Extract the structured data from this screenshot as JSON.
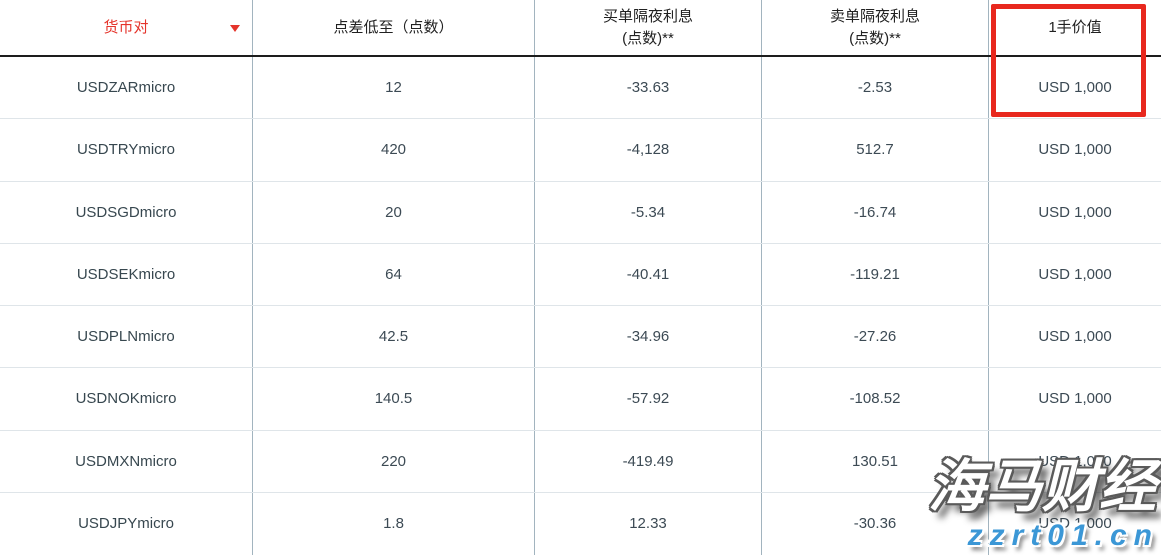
{
  "table": {
    "columns": [
      {
        "key": "pair",
        "label": "货币对",
        "has_sort_dropdown": true,
        "label_color": "#e5342b"
      },
      {
        "key": "spread",
        "label": "点差低至（点数）"
      },
      {
        "key": "buy_swap",
        "label_line1": "买单隔夜利息",
        "label_line2": "(点数)**"
      },
      {
        "key": "sell_swap",
        "label_line1": "卖单隔夜利息",
        "label_line2": "(点数)**"
      },
      {
        "key": "lot_value",
        "label": "1手价值",
        "highlighted": true
      }
    ],
    "rows": [
      {
        "pair": "USDZARmicro",
        "spread": "12",
        "buy_swap": "-33.63",
        "sell_swap": "-2.53",
        "lot_value": "USD 1,000"
      },
      {
        "pair": "USDTRYmicro",
        "spread": "420",
        "buy_swap": "-4,128",
        "sell_swap": "512.7",
        "lot_value": "USD 1,000"
      },
      {
        "pair": "USDSGDmicro",
        "spread": "20",
        "buy_swap": "-5.34",
        "sell_swap": "-16.74",
        "lot_value": "USD 1,000"
      },
      {
        "pair": "USDSEKmicro",
        "spread": "64",
        "buy_swap": "-40.41",
        "sell_swap": "-119.21",
        "lot_value": "USD 1,000"
      },
      {
        "pair": "USDPLNmicro",
        "spread": "42.5",
        "buy_swap": "-34.96",
        "sell_swap": "-27.26",
        "lot_value": "USD 1,000"
      },
      {
        "pair": "USDNOKmicro",
        "spread": "140.5",
        "buy_swap": "-57.92",
        "sell_swap": "-108.52",
        "lot_value": "USD 1,000"
      },
      {
        "pair": "USDMXNmicro",
        "spread": "220",
        "buy_swap": "-419.49",
        "sell_swap": "130.51",
        "lot_value": "USD 1,000"
      },
      {
        "pair": "USDJPYmicro",
        "spread": "1.8",
        "buy_swap": "12.33",
        "sell_swap": "-30.36",
        "lot_value": "USD 1,000"
      }
    ]
  },
  "watermark": {
    "brand": "海马财经",
    "site": "zzrt01.cn"
  },
  "colors": {
    "accent_red": "#e8281e",
    "header_red_text": "#e5342b",
    "header_text": "#212121",
    "cell_text": "#37474f",
    "column_line": "#a2b4bf",
    "row_line": "#dfe5e9",
    "header_bottom_line": "#1d1d1d",
    "watermark_blue": "#3b97d6"
  }
}
